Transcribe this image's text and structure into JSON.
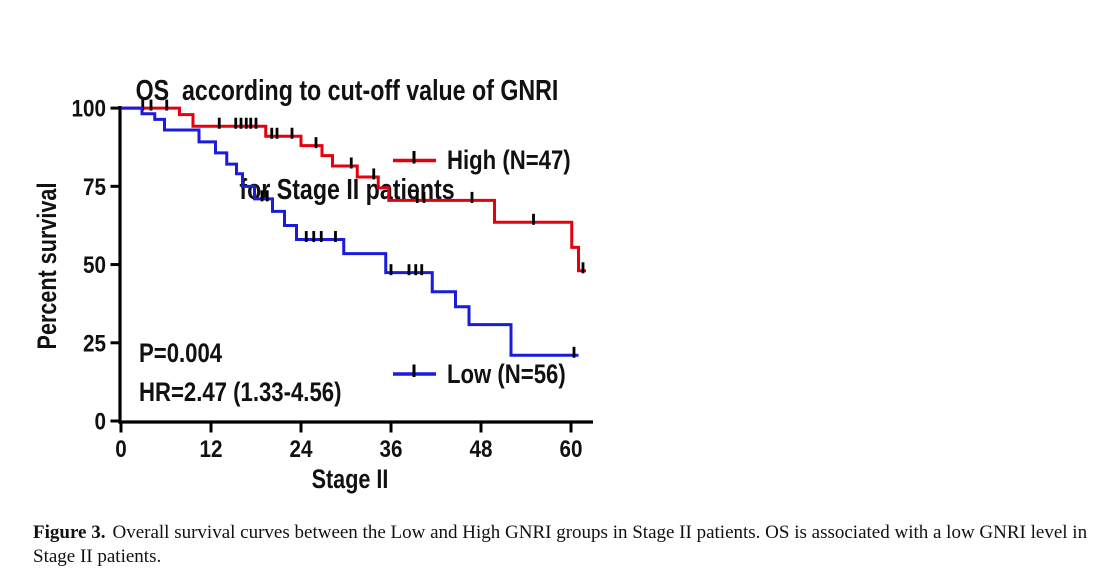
{
  "figure": {
    "title_line1": "OS  according to cut-off value of GNRI",
    "title_line2": "for Stage II patients",
    "stats": {
      "p_value": "P=0.004",
      "hazard_ratio": "HR=2.47 (1.33-4.56)"
    },
    "caption_label": "Figure 3.",
    "caption_body": "Overall survival curves between the Low and High GNRI groups in Stage II patients. OS is associated with a low GNRI level in Stage II patients."
  },
  "chart_data": {
    "type": "line",
    "subtype": "kaplan-meier-step",
    "title": "OS according to cut-off value of GNRI for Stage II patients",
    "xlabel": "Stage II",
    "ylabel": "Percent survival",
    "x_unit": "months",
    "xlim": [
      0,
      63
    ],
    "ylim": [
      0,
      100
    ],
    "x_ticks": [
      0,
      12,
      24,
      36,
      48,
      60
    ],
    "y_ticks": [
      0,
      25,
      50,
      75,
      100
    ],
    "grid": false,
    "legend_position": "inside-right",
    "annotations": [
      "P=0.004",
      "HR=2.47 (1.33-4.56)"
    ],
    "axis_color": "#000000",
    "censor_color": "#000000",
    "series": [
      {
        "name": "High (N=47)",
        "n": 47,
        "color": "#e4000c",
        "steps": [
          [
            0,
            100
          ],
          [
            7.8,
            97.9
          ],
          [
            9.6,
            94.2
          ],
          [
            19.3,
            91.0
          ],
          [
            24.0,
            88.0
          ],
          [
            26.8,
            84.8
          ],
          [
            28.2,
            81.5
          ],
          [
            31.5,
            78.0
          ],
          [
            34.3,
            74.5
          ],
          [
            35.7,
            70.5
          ],
          [
            49.8,
            63.5
          ],
          [
            60.1,
            55.5
          ],
          [
            61.0,
            48.0
          ]
        ],
        "end_time": 62.0,
        "censor_times": [
          2.9,
          4.0,
          6.1,
          13.1,
          15.3,
          16.0,
          16.7,
          17.3,
          18.0,
          20.1,
          20.8,
          22.8,
          26.0,
          30.7,
          33.7,
          39.5,
          40.4,
          46.8,
          55.0,
          61.6
        ]
      },
      {
        "name": "Low (N=56)",
        "n": 56,
        "color": "#1b1bdc",
        "steps": [
          [
            0,
            100
          ],
          [
            2.8,
            98.2
          ],
          [
            4.5,
            96.4
          ],
          [
            5.8,
            93.0
          ],
          [
            10.4,
            89.2
          ],
          [
            12.6,
            85.7
          ],
          [
            14.1,
            82.1
          ],
          [
            15.4,
            79.0
          ],
          [
            16.2,
            75.0
          ],
          [
            17.8,
            71.0
          ],
          [
            20.2,
            67.0
          ],
          [
            21.8,
            62.5
          ],
          [
            23.4,
            58.0
          ],
          [
            29.7,
            53.5
          ],
          [
            35.3,
            47.4
          ],
          [
            41.5,
            41.3
          ],
          [
            44.6,
            36.5
          ],
          [
            46.4,
            30.8
          ],
          [
            52.0,
            21.0
          ]
        ],
        "end_time": 61.0,
        "censor_times": [
          18.8,
          19.5,
          24.7,
          25.7,
          26.7,
          28.6,
          36.0,
          38.4,
          39.3,
          40.1,
          60.4
        ]
      }
    ]
  }
}
